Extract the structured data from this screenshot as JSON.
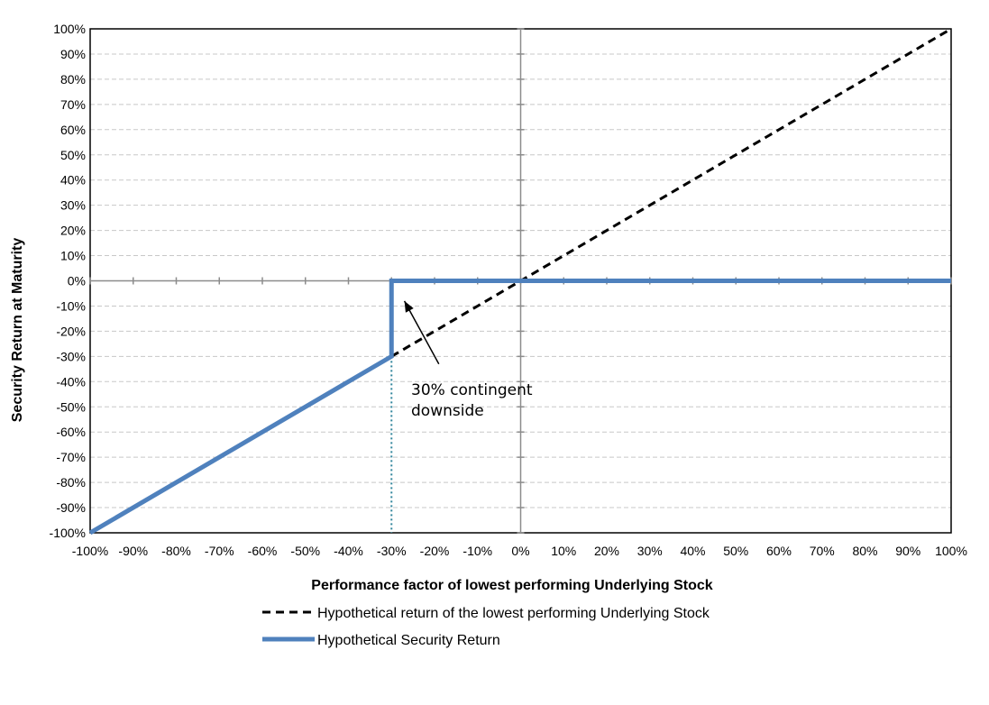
{
  "chart_data": {
    "type": "line",
    "xlabel": "Performance factor of lowest performing Underlying Stock",
    "ylabel": "Security Return at Maturity",
    "xlim": [
      -100,
      100
    ],
    "ylim": [
      -100,
      100
    ],
    "x_ticks": [
      "-100%",
      "-90%",
      "-80%",
      "-70%",
      "-60%",
      "-50%",
      "-40%",
      "-30%",
      "-20%",
      "-10%",
      "0%",
      "10%",
      "20%",
      "30%",
      "40%",
      "50%",
      "60%",
      "70%",
      "80%",
      "90%",
      "100%"
    ],
    "y_ticks": [
      "100%",
      "90%",
      "80%",
      "70%",
      "60%",
      "50%",
      "40%",
      "30%",
      "20%",
      "10%",
      "0%",
      "-10%",
      "-20%",
      "-30%",
      "-40%",
      "-50%",
      "-60%",
      "-70%",
      "-80%",
      "-90%",
      "-100%"
    ],
    "grid": true,
    "legend_position": "bottom",
    "series": [
      {
        "name": "Hypothetical return of the lowest performing Underlying Stock",
        "style": "dashed",
        "color": "#000000",
        "points": [
          [
            -30,
            -30
          ],
          [
            100,
            100
          ]
        ]
      },
      {
        "name": "Hypothetical Security Return",
        "style": "solid",
        "color": "#4F81BD",
        "points": [
          [
            -100,
            -100
          ],
          [
            -30,
            -30
          ],
          [
            -30,
            0
          ],
          [
            100,
            0
          ]
        ]
      }
    ],
    "reference_line": {
      "x": -30,
      "from_y": -30,
      "to_y": -100,
      "style": "dotted",
      "color": "#31859C"
    },
    "annotation": {
      "lines": [
        "30% contingent",
        "downside"
      ],
      "arrow_from": [
        -19,
        -33
      ],
      "arrow_to": [
        -27,
        -8
      ]
    }
  }
}
